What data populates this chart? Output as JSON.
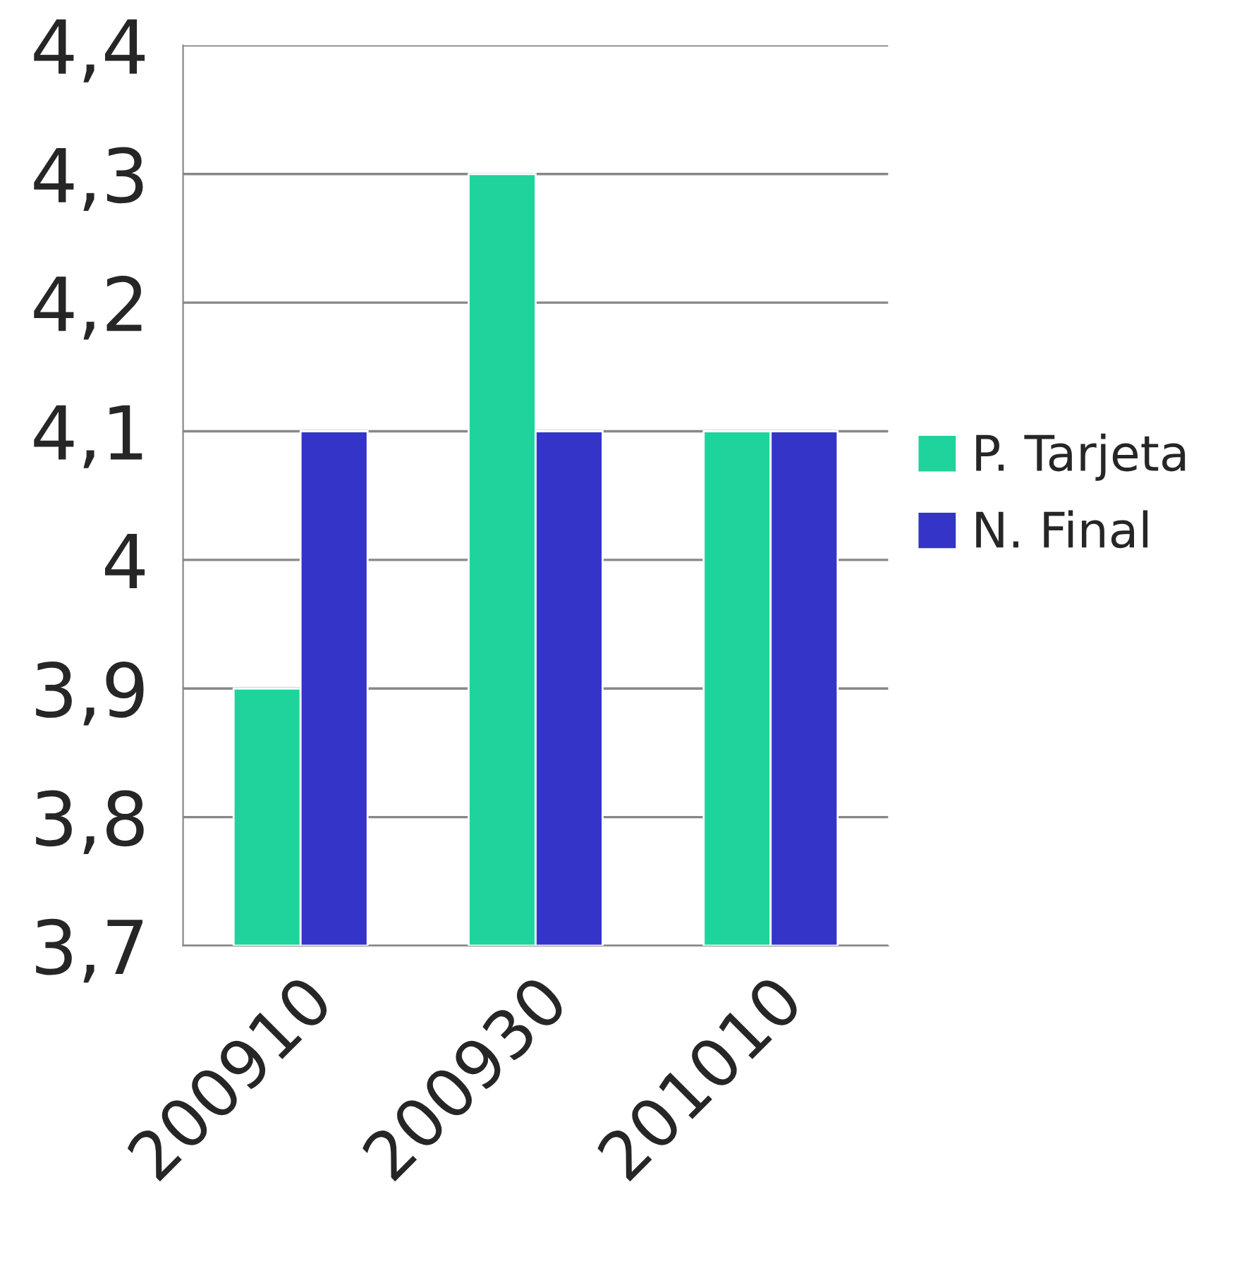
{
  "chart_data": {
    "type": "bar",
    "categories": [
      "200910",
      "200930",
      "201010"
    ],
    "series": [
      {
        "name": "P. Tarjeta",
        "color": "#1fd39c",
        "values": [
          3.9,
          4.3,
          4.1
        ]
      },
      {
        "name": "N. Final",
        "color": "#3434c8",
        "values": [
          4.1,
          4.1,
          4.1
        ]
      }
    ],
    "ylim": [
      3.7,
      4.4
    ],
    "yticks": [
      {
        "value": 3.7,
        "label": "3,7"
      },
      {
        "value": 3.8,
        "label": "3,8"
      },
      {
        "value": 3.9,
        "label": "3,9"
      },
      {
        "value": 4.0,
        "label": "4"
      },
      {
        "value": 4.1,
        "label": "4,1"
      },
      {
        "value": 4.2,
        "label": "4,2"
      },
      {
        "value": 4.3,
        "label": "4,3"
      },
      {
        "value": 4.4,
        "label": "4,4"
      }
    ],
    "grid": "y",
    "legend": "right"
  }
}
